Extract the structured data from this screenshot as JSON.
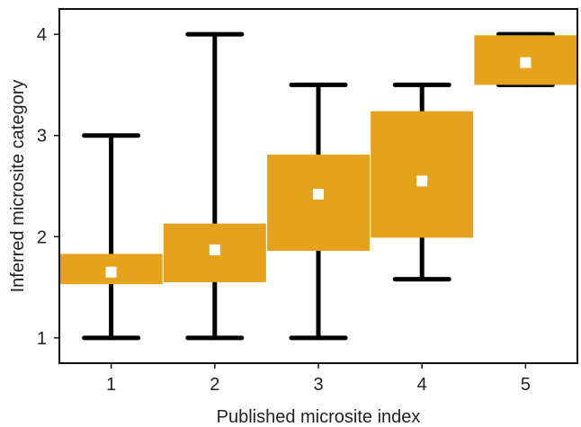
{
  "chart_data": {
    "type": "boxplot",
    "xlabel": "Published microsite index",
    "ylabel": "Inferred microsite category",
    "xlim": [
      0.5,
      5.5
    ],
    "ylim": [
      0.75,
      4.25
    ],
    "x_ticks": [
      "1",
      "2",
      "3",
      "4",
      "5"
    ],
    "y_ticks": [
      "1",
      "2",
      "3",
      "4"
    ],
    "grid": false,
    "colors": {
      "box": "#e5a21c",
      "whisker": "#000000",
      "mean_marker": "#ffffff"
    },
    "boxes": [
      {
        "x": 1,
        "whisker_low": 1.0,
        "q1": 1.53,
        "q3": 1.83,
        "whisker_high": 3.0,
        "mean": 1.65
      },
      {
        "x": 2,
        "whisker_low": 1.0,
        "q1": 1.55,
        "q3": 2.13,
        "whisker_high": 4.0,
        "mean": 1.87
      },
      {
        "x": 3,
        "whisker_low": 1.0,
        "q1": 1.86,
        "q3": 2.81,
        "whisker_high": 3.5,
        "mean": 2.42
      },
      {
        "x": 4,
        "whisker_low": 1.58,
        "q1": 1.99,
        "q3": 3.24,
        "whisker_high": 3.5,
        "mean": 2.55
      },
      {
        "x": 5,
        "whisker_low": 3.5,
        "q1": 3.5,
        "q3": 3.99,
        "whisker_high": 4.0,
        "mean": 3.72
      }
    ]
  }
}
